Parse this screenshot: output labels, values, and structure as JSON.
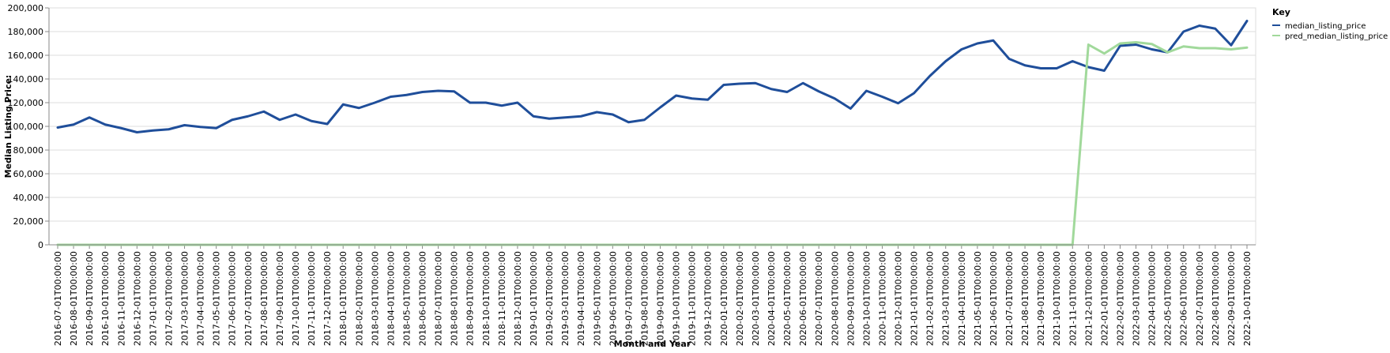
{
  "chart_data": {
    "type": "line",
    "xlabel": "Month and Year",
    "ylabel": "Median Listing Price:",
    "ylim": [
      0,
      200000
    ],
    "yticks": [
      0,
      20000,
      40000,
      60000,
      80000,
      100000,
      120000,
      140000,
      160000,
      180000,
      200000
    ],
    "ytick_labels": [
      "0",
      "20,000",
      "40,000",
      "60,000",
      "80,000",
      "100,000",
      "120,000",
      "140,000",
      "160,000",
      "180,000",
      "200,000"
    ],
    "grid": true,
    "legend": {
      "title": "Key",
      "placement": "top-right"
    },
    "x": [
      "2016-07-01T00:00:00",
      "2016-08-01T00:00:00",
      "2016-09-01T00:00:00",
      "2016-10-01T00:00:00",
      "2016-11-01T00:00:00",
      "2016-12-01T00:00:00",
      "2017-01-01T00:00:00",
      "2017-02-01T00:00:00",
      "2017-03-01T00:00:00",
      "2017-04-01T00:00:00",
      "2017-05-01T00:00:00",
      "2017-06-01T00:00:00",
      "2017-07-01T00:00:00",
      "2017-08-01T00:00:00",
      "2017-09-01T00:00:00",
      "2017-10-01T00:00:00",
      "2017-11-01T00:00:00",
      "2017-12-01T00:00:00",
      "2018-01-01T00:00:00",
      "2018-02-01T00:00:00",
      "2018-03-01T00:00:00",
      "2018-04-01T00:00:00",
      "2018-05-01T00:00:00",
      "2018-06-01T00:00:00",
      "2018-07-01T00:00:00",
      "2018-08-01T00:00:00",
      "2018-09-01T00:00:00",
      "2018-10-01T00:00:00",
      "2018-11-01T00:00:00",
      "2018-12-01T00:00:00",
      "2019-01-01T00:00:00",
      "2019-02-01T00:00:00",
      "2019-03-01T00:00:00",
      "2019-04-01T00:00:00",
      "2019-05-01T00:00:00",
      "2019-06-01T00:00:00",
      "2019-07-01T00:00:00",
      "2019-08-01T00:00:00",
      "2019-09-01T00:00:00",
      "2019-10-01T00:00:00",
      "2019-11-01T00:00:00",
      "2019-12-01T00:00:00",
      "2020-01-01T00:00:00",
      "2020-02-01T00:00:00",
      "2020-03-01T00:00:00",
      "2020-04-01T00:00:00",
      "2020-05-01T00:00:00",
      "2020-06-01T00:00:00",
      "2020-07-01T00:00:00",
      "2020-08-01T00:00:00",
      "2020-09-01T00:00:00",
      "2020-10-01T00:00:00",
      "2020-11-01T00:00:00",
      "2020-12-01T00:00:00",
      "2021-01-01T00:00:00",
      "2021-02-01T00:00:00",
      "2021-03-01T00:00:00",
      "2021-04-01T00:00:00",
      "2021-05-01T00:00:00",
      "2021-06-01T00:00:00",
      "2021-07-01T00:00:00",
      "2021-08-01T00:00:00",
      "2021-09-01T00:00:00",
      "2021-10-01T00:00:00",
      "2021-11-01T00:00:00",
      "2021-12-01T00:00:00",
      "2022-01-01T00:00:00",
      "2022-02-01T00:00:00",
      "2022-03-01T00:00:00",
      "2022-04-01T00:00:00",
      "2022-05-01T00:00:00",
      "2022-06-01T00:00:00",
      "2022-07-01T00:00:00",
      "2022-08-01T00:00:00",
      "2022-09-01T00:00:00",
      "2022-10-01T00:00:00"
    ],
    "series": [
      {
        "name": "median_listing_price",
        "color": "#1f4e9a",
        "values": [
          99000,
          101500,
          107500,
          101500,
          98500,
          95000,
          96500,
          97500,
          101000,
          99500,
          98500,
          105500,
          108500,
          112500,
          105500,
          110000,
          104500,
          102000,
          118500,
          115500,
          120000,
          125000,
          126500,
          129000,
          130000,
          129500,
          120000,
          120000,
          117500,
          120000,
          108500,
          106500,
          107500,
          108500,
          112000,
          110000,
          103500,
          105500,
          116000,
          126000,
          123500,
          122500,
          135000,
          136000,
          136500,
          131500,
          129000,
          136500,
          129500,
          123500,
          115000,
          130000,
          125000,
          119500,
          128000,
          142500,
          155000,
          165000,
          170000,
          172500,
          157000,
          151500,
          149000,
          149000,
          155000,
          150000,
          147000,
          168000,
          169000,
          165000,
          162500,
          180000,
          185000,
          182500,
          168500,
          189000
        ]
      },
      {
        "name": "pred_median_listing_price",
        "color": "#a1d99b",
        "values": [
          0,
          0,
          0,
          0,
          0,
          0,
          0,
          0,
          0,
          0,
          0,
          0,
          0,
          0,
          0,
          0,
          0,
          0,
          0,
          0,
          0,
          0,
          0,
          0,
          0,
          0,
          0,
          0,
          0,
          0,
          0,
          0,
          0,
          0,
          0,
          0,
          0,
          0,
          0,
          0,
          0,
          0,
          0,
          0,
          0,
          0,
          0,
          0,
          0,
          0,
          0,
          0,
          0,
          0,
          0,
          0,
          0,
          0,
          0,
          0,
          0,
          0,
          0,
          0,
          0,
          169000,
          161500,
          170000,
          171000,
          169500,
          162500,
          167500,
          166000,
          166000,
          165000,
          166500
        ]
      }
    ]
  }
}
